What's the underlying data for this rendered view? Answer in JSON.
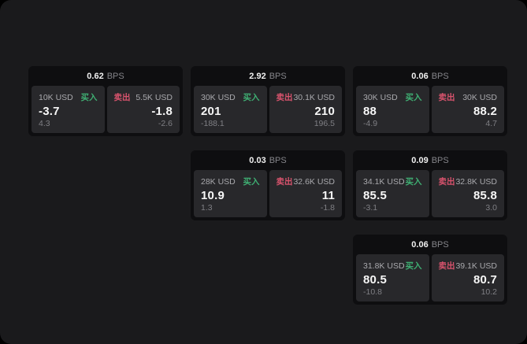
{
  "theme": {
    "page_bg": "#000000",
    "canvas_bg": "#1a1a1c",
    "card_bg": "#0e0e10",
    "tile_bg": "#28282b",
    "text_primary": "#f5f5f5",
    "text_secondary": "#a8a8ac",
    "text_dim": "#7f7f84",
    "buy_green": "#3faf73",
    "sell_red": "#d8536d"
  },
  "labels": {
    "bps_suffix": "BPS",
    "buy": "买入",
    "sell": "卖出"
  },
  "cards": [
    {
      "bps": "0.62",
      "buy": {
        "amount": "10K USD",
        "price": "-3.7",
        "sub": "4.3"
      },
      "sell": {
        "amount": "5.5K USD",
        "price": "-1.8",
        "sub": "-2.6"
      }
    },
    {
      "bps": "2.92",
      "buy": {
        "amount": "30K USD",
        "price": "201",
        "sub": "-188.1"
      },
      "sell": {
        "amount": "30.1K USD",
        "price": "210",
        "sub": "196.5"
      }
    },
    {
      "bps": "0.06",
      "buy": {
        "amount": "30K USD",
        "price": "88",
        "sub": "-4.9"
      },
      "sell": {
        "amount": "30K USD",
        "price": "88.2",
        "sub": "4.7"
      }
    },
    {
      "bps": "0.03",
      "buy": {
        "amount": "28K USD",
        "price": "10.9",
        "sub": "1.3"
      },
      "sell": {
        "amount": "32.6K USD",
        "price": "11",
        "sub": "-1.8"
      }
    },
    {
      "bps": "0.09",
      "buy": {
        "amount": "34.1K USD",
        "price": "85.5",
        "sub": "-3.1"
      },
      "sell": {
        "amount": "32.8K USD",
        "price": "85.8",
        "sub": "3.0"
      }
    },
    {
      "bps": "0.06",
      "buy": {
        "amount": "31.8K USD",
        "price": "80.5",
        "sub": "-10.8"
      },
      "sell": {
        "amount": "39.1K USD",
        "price": "80.7",
        "sub": "10.2"
      }
    }
  ]
}
